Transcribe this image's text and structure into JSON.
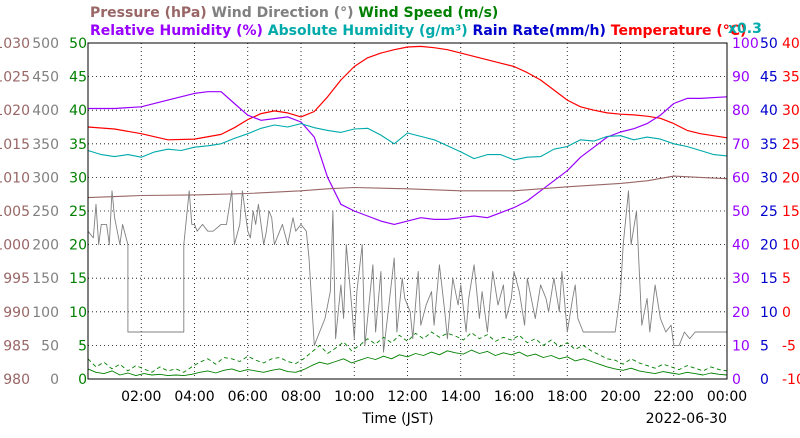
{
  "header": {
    "row1": [
      {
        "text": "Pressure (hPa)",
        "color": "#996666"
      },
      {
        "text": "Wind Direction (°)",
        "color": "#808080"
      },
      {
        "text": "Wind Speed (m/s)",
        "color": "#008000"
      }
    ],
    "row2": [
      {
        "text": "Relative Humidity (%)",
        "color": "#9900ff"
      },
      {
        "text": "Absolute Humidity (g/m³)",
        "color": "#00aaaa"
      },
      {
        "text": "Rain Rate(mm/h)",
        "color": "#0000cc"
      },
      {
        "text": "Temperature (°C)",
        "color": "#ff0000"
      }
    ],
    "scale_note": {
      "text": "x0.3",
      "color": "#00aaaa"
    }
  },
  "footer": {
    "xlabel": "Time (JST)",
    "date": "2022-06-30"
  },
  "chart_data": {
    "type": "line",
    "x_ticks": [
      "02:00",
      "04:00",
      "06:00",
      "08:00",
      "10:00",
      "12:00",
      "14:00",
      "16:00",
      "18:00",
      "20:00",
      "22:00",
      "00:00"
    ],
    "xlim_hours": [
      0,
      24
    ],
    "grid": true,
    "axes": [
      {
        "side": "left",
        "color": "#996666",
        "ticks": [
          "980",
          "985",
          "990",
          "995",
          "1000",
          "1005",
          "1010",
          "1015",
          "1020",
          "1025",
          "1030"
        ],
        "label": "Pressure (hPa)"
      },
      {
        "side": "left",
        "color": "#808080",
        "ticks": [
          "0",
          "50",
          "100",
          "150",
          "200",
          "250",
          "300",
          "350",
          "400",
          "450",
          "500"
        ],
        "label": "Wind Direction (°)"
      },
      {
        "side": "left",
        "color": "#008000",
        "ticks": [
          "0",
          "5",
          "10",
          "15",
          "20",
          "25",
          "30",
          "35",
          "40",
          "45",
          "50"
        ],
        "label": "Wind Speed (m/s)"
      },
      {
        "side": "right",
        "color": "#9900ff",
        "ticks": [
          "0",
          "10",
          "20",
          "30",
          "40",
          "50",
          "60",
          "70",
          "80",
          "90",
          "100"
        ],
        "label": "Relative Humidity (%)"
      },
      {
        "side": "right",
        "color": "#0000cc",
        "ticks": [
          "0",
          "5",
          "10",
          "15",
          "20",
          "25",
          "30",
          "35",
          "40",
          "45",
          "50"
        ],
        "label": "Rain Rate(mm/h)"
      },
      {
        "side": "right",
        "color": "#ff0000",
        "ticks": [
          "-10",
          "-5",
          "0",
          "5",
          "10",
          "15",
          "20",
          "25",
          "30",
          "35",
          "40"
        ],
        "label": "Temperature (°C)"
      }
    ],
    "series": [
      {
        "name": "Temperature (°C)",
        "color": "#ff0000",
        "width": 1.2,
        "dash": "",
        "ylim": [
          -10,
          40
        ],
        "x": [
          0,
          1,
          2,
          3,
          4,
          5,
          5.5,
          6,
          6.5,
          7,
          7.5,
          8,
          8.5,
          9,
          9.5,
          10,
          10.5,
          11,
          11.5,
          12,
          12.5,
          13,
          13.5,
          14,
          14.5,
          15,
          15.5,
          16,
          16.5,
          17,
          17.5,
          18,
          18.5,
          19,
          19.5,
          20,
          20.5,
          21,
          21.5,
          22,
          22.5,
          23,
          24
        ],
        "y": [
          27.5,
          27.2,
          26.5,
          25.6,
          25.7,
          26.4,
          27.4,
          28.6,
          29.5,
          29.9,
          29.6,
          29.0,
          29.8,
          32.0,
          34.5,
          36.5,
          37.8,
          38.5,
          39.0,
          39.4,
          39.5,
          39.3,
          39.0,
          38.5,
          38.0,
          37.5,
          37.0,
          36.5,
          35.6,
          34.5,
          33.0,
          31.5,
          30.5,
          30.0,
          29.6,
          29.4,
          29.3,
          29.1,
          28.8,
          28.0,
          27.0,
          26.5,
          25.9
        ]
      },
      {
        "name": "Relative Humidity (%)",
        "color": "#9900ff",
        "width": 1.2,
        "dash": "",
        "ylim": [
          0,
          100
        ],
        "x": [
          0,
          1,
          2,
          3,
          4,
          4.5,
          5,
          5.5,
          6,
          6.5,
          7,
          7.5,
          8,
          8.5,
          9,
          9.5,
          10,
          10.5,
          11,
          11.5,
          12,
          12.5,
          13,
          13.5,
          14,
          14.5,
          15,
          15.5,
          16,
          16.5,
          17,
          17.5,
          18,
          18.5,
          19,
          19.5,
          20,
          20.5,
          21,
          21.5,
          22,
          22.5,
          23,
          24
        ],
        "y": [
          80.5,
          80.5,
          81.0,
          83.0,
          85.0,
          85.5,
          85.5,
          82.0,
          78.5,
          77.0,
          77.5,
          78.0,
          76.5,
          72.0,
          60.0,
          52.0,
          50.0,
          48.5,
          47.0,
          46.0,
          47.0,
          48.0,
          47.5,
          47.5,
          48.0,
          48.5,
          48.0,
          49.5,
          51.0,
          53.0,
          56.0,
          59.0,
          62.0,
          66.0,
          69.0,
          72.0,
          73.5,
          74.5,
          76.0,
          78.5,
          82.0,
          83.5,
          83.5,
          84.0
        ]
      },
      {
        "name": "Absolute Humidity (g/m³)",
        "color": "#00aaaa",
        "width": 1.1,
        "dash": "",
        "ylim": [
          0,
          50
        ],
        "x": [
          0,
          0.5,
          1,
          1.5,
          2,
          2.5,
          3,
          3.5,
          4,
          4.5,
          5,
          5.5,
          6,
          6.5,
          7,
          7.5,
          8,
          8.5,
          9,
          9.5,
          10,
          10.5,
          11,
          11.5,
          12,
          12.5,
          13,
          13.5,
          14,
          14.5,
          15,
          15.5,
          16,
          16.5,
          17,
          17.5,
          18,
          18.5,
          19,
          19.5,
          20,
          20.5,
          21,
          21.5,
          22,
          22.5,
          23,
          23.5,
          24
        ],
        "y": [
          34.0,
          33.4,
          33.1,
          33.4,
          33.0,
          33.8,
          34.2,
          34.0,
          34.5,
          34.7,
          35.0,
          35.8,
          36.5,
          37.3,
          37.8,
          37.5,
          38.0,
          37.4,
          37.0,
          36.7,
          37.2,
          37.3,
          36.3,
          35.0,
          36.6,
          36.1,
          35.6,
          34.7,
          33.8,
          32.8,
          33.4,
          33.4,
          32.6,
          33.0,
          33.1,
          34.2,
          34.6,
          35.6,
          35.4,
          36.1,
          36.2,
          35.6,
          36.0,
          35.7,
          35.0,
          34.6,
          34.0,
          33.4,
          33.2
        ]
      },
      {
        "name": "Pressure (hPa)",
        "color": "#996666",
        "width": 1.1,
        "dash": "",
        "ylim": [
          980,
          1030
        ],
        "x": [
          0,
          2,
          4,
          6,
          8,
          9,
          10,
          12,
          14,
          16,
          18,
          20,
          21,
          22,
          23,
          24
        ],
        "y": [
          1007.0,
          1007.3,
          1007.4,
          1007.6,
          1008.0,
          1008.3,
          1008.5,
          1008.3,
          1008.0,
          1008.0,
          1008.6,
          1009.1,
          1009.5,
          1010.2,
          1010.0,
          1009.8
        ]
      },
      {
        "name": "Wind Direction (°)",
        "color": "#808080",
        "width": 0.9,
        "dash": "",
        "ylim": [
          0,
          500
        ],
        "x": [
          0,
          0.2,
          0.3,
          0.4,
          0.5,
          0.7,
          0.8,
          0.9,
          1,
          1.2,
          1.3,
          1.5,
          1.5,
          3.6,
          3.6,
          3.8,
          3.9,
          4,
          4.1,
          4.3,
          4.5,
          4.7,
          5,
          5.2,
          5.4,
          5.5,
          5.7,
          5.8,
          6,
          6.1,
          6.2,
          6.3,
          6.4,
          6.6,
          6.7,
          6.8,
          6.9,
          7,
          7.1,
          7.3,
          7.5,
          7.7,
          7.8,
          8,
          8.2,
          8.3,
          8.5,
          8.7,
          8.9,
          9.1,
          9.2,
          9.3,
          9.5,
          9.6,
          9.7,
          9.9,
          10,
          10.1,
          10.3,
          10.4,
          10.5,
          10.7,
          10.8,
          11,
          11.1,
          11.3,
          11.5,
          11.6,
          11.8,
          11.9,
          12.1,
          12.2,
          12.4,
          12.5,
          12.7,
          12.9,
          13,
          13.2,
          13.4,
          13.5,
          13.7,
          13.9,
          14,
          14.2,
          14.3,
          14.5,
          14.7,
          14.8,
          15,
          15.2,
          15.4,
          15.6,
          15.7,
          15.9,
          16,
          16.2,
          16.4,
          16.5,
          16.7,
          16.8,
          17,
          17.2,
          17.3,
          17.5,
          17.7,
          17.8,
          18,
          18.2,
          18.3,
          18.4,
          18.6,
          19,
          19.5,
          19.8,
          20,
          20.1,
          20.3,
          20.4,
          20.6,
          20.8,
          21,
          21.1,
          21.3,
          21.5,
          21.7,
          21.9,
          22,
          22.2,
          22.4,
          22.6,
          22.8,
          23,
          23.3,
          23.6,
          24
        ],
        "y": [
          220,
          210,
          260,
          200,
          230,
          230,
          200,
          280,
          240,
          200,
          230,
          200,
          70,
          70,
          200,
          280,
          230,
          230,
          220,
          230,
          220,
          220,
          230,
          230,
          280,
          200,
          230,
          280,
          220,
          210,
          250,
          230,
          260,
          200,
          220,
          250,
          240,
          200,
          210,
          230,
          200,
          240,
          220,
          230,
          220,
          180,
          50,
          70,
          90,
          130,
          250,
          60,
          140,
          90,
          200,
          110,
          60,
          130,
          200,
          50,
          90,
          170,
          70,
          160,
          40,
          110,
          180,
          70,
          150,
          120,
          100,
          60,
          160,
          80,
          110,
          130,
          80,
          170,
          100,
          60,
          150,
          110,
          140,
          70,
          120,
          170,
          90,
          130,
          70,
          160,
          110,
          140,
          90,
          120,
          160,
          130,
          80,
          150,
          110,
          90,
          140,
          120,
          100,
          150,
          100,
          160,
          70,
          120,
          140,
          90,
          70,
          70,
          70,
          70,
          130,
          200,
          280,
          200,
          250,
          80,
          120,
          70,
          140,
          90,
          70,
          80,
          50,
          50,
          70,
          60,
          70,
          70,
          70,
          70,
          70
        ]
      },
      {
        "name": "Wind Speed (m/s)",
        "color": "#008000",
        "width": 0.9,
        "dash": "",
        "ylim": [
          0,
          50
        ],
        "x": [
          0,
          0.3,
          0.6,
          0.9,
          1.2,
          1.5,
          1.8,
          2.1,
          2.4,
          2.7,
          3,
          3.3,
          3.6,
          3.9,
          4.2,
          4.5,
          4.8,
          5.1,
          5.4,
          5.7,
          6,
          6.3,
          6.6,
          6.9,
          7.2,
          7.5,
          7.8,
          8.1,
          8.4,
          8.7,
          9,
          9.3,
          9.6,
          9.9,
          10.2,
          10.5,
          10.8,
          11.1,
          11.4,
          11.7,
          12,
          12.3,
          12.6,
          12.9,
          13.2,
          13.5,
          13.8,
          14.1,
          14.4,
          14.7,
          15,
          15.3,
          15.6,
          15.9,
          16.2,
          16.5,
          16.8,
          17.1,
          17.4,
          17.7,
          18,
          18.3,
          18.6,
          18.9,
          19.2,
          19.5,
          19.8,
          20.1,
          20.4,
          20.7,
          21,
          21.3,
          21.6,
          21.9,
          22.2,
          22.5,
          22.8,
          23.1,
          23.4,
          23.7,
          24
        ],
        "y": [
          1.5,
          1.0,
          0.8,
          1.2,
          0.6,
          0.9,
          0.5,
          0.8,
          0.6,
          0.7,
          0.5,
          0.6,
          0.5,
          0.7,
          1.0,
          1.2,
          0.9,
          1.3,
          1.5,
          1.1,
          1.4,
          1.2,
          1.0,
          1.3,
          1.5,
          1.1,
          1.0,
          1.4,
          2.0,
          2.5,
          2.2,
          2.6,
          3.0,
          2.4,
          2.8,
          3.2,
          2.9,
          3.4,
          3.0,
          3.6,
          3.3,
          3.8,
          3.5,
          4.0,
          3.6,
          4.2,
          3.9,
          3.7,
          4.3,
          3.8,
          4.1,
          3.5,
          3.9,
          3.6,
          4.0,
          3.4,
          3.7,
          3.2,
          3.5,
          3.0,
          3.3,
          2.7,
          3.0,
          2.6,
          2.2,
          1.8,
          1.5,
          1.3,
          1.6,
          1.2,
          1.0,
          0.8,
          1.1,
          0.9,
          0.7,
          1.0,
          0.8,
          0.6,
          0.9,
          0.7,
          0.6
        ]
      },
      {
        "name": "Wind Speed gust (m/s)",
        "color": "#008000",
        "width": 0.9,
        "dash": "4,3",
        "ylim": [
          0,
          50
        ],
        "x": [
          0,
          0.3,
          0.6,
          0.9,
          1.2,
          1.5,
          1.8,
          2.1,
          2.4,
          2.7,
          3,
          3.3,
          3.6,
          3.9,
          4.2,
          4.5,
          4.8,
          5.1,
          5.4,
          5.7,
          6,
          6.3,
          6.6,
          6.9,
          7.2,
          7.5,
          7.8,
          8.1,
          8.4,
          8.7,
          9,
          9.3,
          9.6,
          9.9,
          10.2,
          10.5,
          10.8,
          11.1,
          11.4,
          11.7,
          12,
          12.3,
          12.6,
          12.9,
          13.2,
          13.5,
          13.8,
          14.1,
          14.4,
          14.7,
          15,
          15.3,
          15.6,
          15.9,
          16.2,
          16.5,
          16.8,
          17.1,
          17.4,
          17.7,
          18,
          18.3,
          18.6,
          18.9,
          19.2,
          19.5,
          19.8,
          20.1,
          20.4,
          20.7,
          21,
          21.3,
          21.6,
          21.9,
          22.2,
          22.5,
          22.8,
          23.1,
          23.4,
          23.7,
          24
        ],
        "y": [
          3.0,
          1.8,
          2.5,
          1.5,
          2.2,
          1.2,
          2.0,
          1.5,
          1.0,
          1.8,
          1.2,
          1.5,
          1.0,
          1.8,
          2.5,
          3.0,
          2.2,
          3.2,
          3.0,
          2.6,
          3.4,
          2.8,
          2.4,
          3.0,
          3.2,
          2.6,
          2.3,
          3.0,
          4.0,
          5.0,
          3.8,
          4.6,
          5.5,
          4.2,
          5.0,
          6.0,
          5.2,
          6.2,
          5.4,
          6.5,
          5.6,
          6.8,
          6.0,
          7.0,
          6.2,
          6.8,
          6.4,
          5.8,
          6.9,
          6.0,
          6.6,
          5.6,
          6.2,
          5.8,
          6.5,
          5.4,
          6.0,
          5.0,
          5.8,
          4.8,
          5.4,
          4.4,
          5.0,
          4.2,
          3.6,
          3.0,
          2.8,
          2.2,
          3.0,
          2.4,
          2.0,
          1.6,
          2.2,
          1.8,
          1.4,
          2.0,
          1.6,
          1.2,
          1.8,
          1.4,
          1.2
        ]
      },
      {
        "name": "Rain Rate(mm/h)",
        "color": "#0000cc",
        "width": 1.0,
        "dash": "",
        "ylim": [
          0,
          50
        ],
        "x": [
          0,
          24
        ],
        "y": [
          0,
          0
        ]
      }
    ]
  }
}
